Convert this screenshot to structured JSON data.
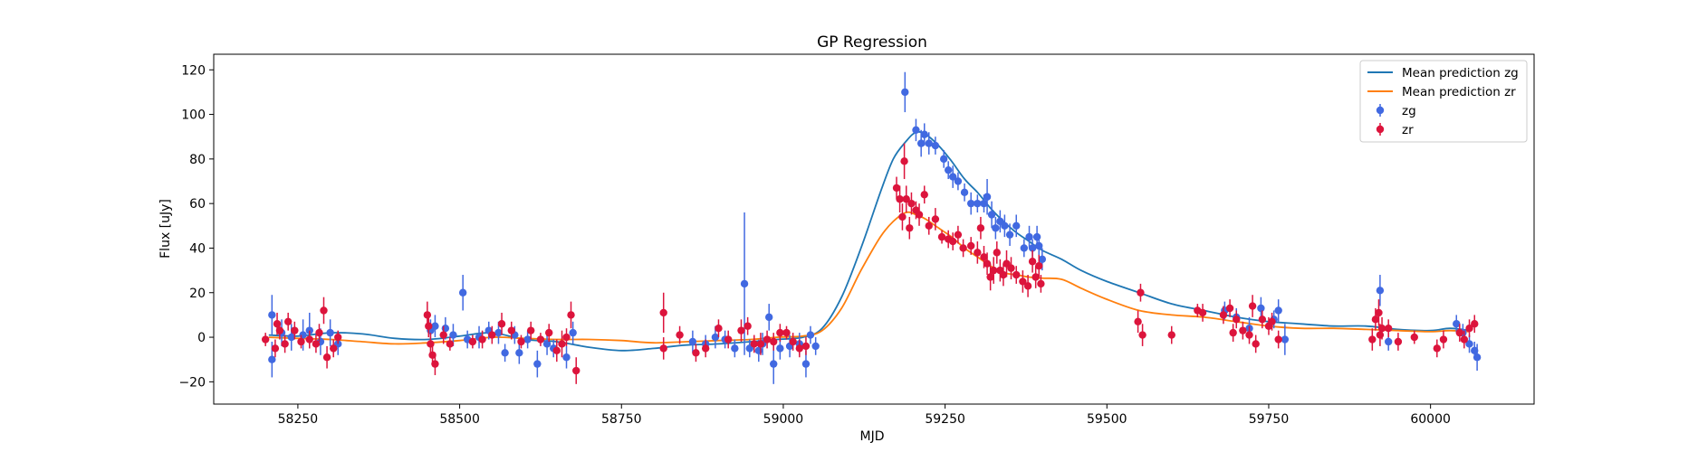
{
  "chart_data": {
    "type": "scatter",
    "title": "GP Regression",
    "xlabel": "MJD",
    "ylabel": "Flux [uJy]",
    "xlim": [
      58120,
      60160
    ],
    "ylim": [
      -30,
      127
    ],
    "xticks": [
      58250,
      58500,
      58750,
      59000,
      59250,
      59500,
      59750,
      60000
    ],
    "yticks": [
      -20,
      0,
      20,
      40,
      60,
      80,
      100,
      120
    ],
    "grid": false,
    "legend_position": "top-right",
    "legend_order": [
      "pred_zg",
      "pred_zr",
      "obs_zg",
      "obs_zr"
    ],
    "series": [
      {
        "key": "pred_zg",
        "name": "Mean prediction zg",
        "kind": "line",
        "color": "#1f77b4",
        "x": [
          58205,
          58250,
          58300,
          58350,
          58400,
          58450,
          58500,
          58550,
          58600,
          58650,
          58700,
          58750,
          58800,
          58850,
          58900,
          58950,
          58990,
          59030,
          59060,
          59090,
          59120,
          59150,
          59170,
          59190,
          59205,
          59220,
          59240,
          59260,
          59280,
          59300,
          59320,
          59340,
          59360,
          59380,
          59400,
          59430,
          59460,
          59500,
          59550,
          59600,
          59650,
          59700,
          59750,
          59800,
          59850,
          59900,
          59950,
          60000,
          60030,
          60060
        ],
        "values": [
          1,
          0.5,
          2,
          1.5,
          -0.5,
          -1,
          0.5,
          2,
          -1,
          -2,
          -4.5,
          -6,
          -5,
          -3.5,
          -3,
          -2,
          -1,
          0,
          4,
          18,
          40,
          65,
          80,
          88,
          92,
          91,
          86,
          79,
          71,
          65,
          58,
          52,
          47,
          43,
          39,
          35,
          30,
          25,
          20,
          15,
          12,
          9,
          7,
          6,
          5,
          5,
          3.5,
          3,
          4,
          3
        ]
      },
      {
        "key": "pred_zr",
        "name": "Mean prediction zr",
        "kind": "line",
        "color": "#ff7f0e",
        "x": [
          58205,
          58250,
          58300,
          58350,
          58400,
          58450,
          58500,
          58550,
          58600,
          58650,
          58700,
          58750,
          58800,
          58850,
          58900,
          58950,
          58990,
          59030,
          59060,
          59090,
          59120,
          59150,
          59170,
          59190,
          59205,
          59220,
          59240,
          59260,
          59280,
          59300,
          59320,
          59340,
          59360,
          59380,
          59400,
          59430,
          59460,
          59500,
          59550,
          59600,
          59650,
          59700,
          59750,
          59800,
          59850,
          59900,
          59950,
          60000,
          60030,
          60060
        ],
        "values": [
          0,
          -0.5,
          -1,
          -2,
          -3,
          -2.5,
          -1.5,
          0,
          -0.5,
          -1,
          -1,
          -1.5,
          -2.5,
          -2,
          -1.5,
          -1,
          0,
          0.5,
          3,
          13,
          30,
          45,
          52,
          56,
          55,
          53,
          49,
          45,
          40,
          36,
          32,
          29,
          28,
          27,
          26.5,
          26,
          22,
          17,
          12,
          10,
          9,
          7,
          5,
          4,
          4,
          3.5,
          3,
          2.5,
          3,
          2.5
        ]
      },
      {
        "key": "obs_zg",
        "name": "zg",
        "kind": "errorbar",
        "color": "#4169e1",
        "points": [
          [
            58210,
            10,
            9
          ],
          [
            58210,
            -10,
            8
          ],
          [
            58225,
            2,
            6
          ],
          [
            58240,
            0,
            6
          ],
          [
            58258,
            1,
            7
          ],
          [
            58268,
            3,
            8
          ],
          [
            58285,
            -2,
            6
          ],
          [
            58300,
            2,
            6
          ],
          [
            58312,
            -3,
            5
          ],
          [
            58455,
            3,
            5
          ],
          [
            58462,
            5,
            5
          ],
          [
            58478,
            4,
            5
          ],
          [
            58490,
            1,
            5
          ],
          [
            58505,
            20,
            8
          ],
          [
            58512,
            -1,
            4
          ],
          [
            58530,
            0,
            5
          ],
          [
            58545,
            3,
            4
          ],
          [
            58560,
            2,
            5
          ],
          [
            58570,
            -7,
            4
          ],
          [
            58585,
            1,
            4
          ],
          [
            58592,
            -7,
            5
          ],
          [
            58605,
            -1,
            4
          ],
          [
            58620,
            -12,
            6
          ],
          [
            58635,
            -3,
            5
          ],
          [
            58645,
            -5,
            4
          ],
          [
            58665,
            -9,
            5
          ],
          [
            58675,
            2,
            5
          ],
          [
            58860,
            -2,
            5
          ],
          [
            58880,
            -3,
            4
          ],
          [
            58895,
            0,
            5
          ],
          [
            58910,
            -1,
            4
          ],
          [
            58925,
            -5,
            4
          ],
          [
            58940,
            24,
            32
          ],
          [
            58948,
            -5,
            4
          ],
          [
            58962,
            -6,
            5
          ],
          [
            58968,
            -3,
            5
          ],
          [
            58978,
            9,
            6
          ],
          [
            58985,
            -12,
            9
          ],
          [
            58995,
            -5,
            5
          ],
          [
            59010,
            -4,
            5
          ],
          [
            59025,
            -3,
            5
          ],
          [
            59035,
            -12,
            6
          ],
          [
            59042,
            1,
            4
          ],
          [
            59050,
            -4,
            4
          ],
          [
            59188,
            110,
            9
          ],
          [
            59205,
            93,
            5
          ],
          [
            59213,
            87,
            6
          ],
          [
            59218,
            91,
            5
          ],
          [
            59225,
            87,
            5
          ],
          [
            59235,
            86,
            4
          ],
          [
            59248,
            80,
            4
          ],
          [
            59255,
            75,
            4
          ],
          [
            59262,
            72,
            5
          ],
          [
            59270,
            70,
            4
          ],
          [
            59280,
            65,
            4
          ],
          [
            59290,
            60,
            5
          ],
          [
            59300,
            60,
            4
          ],
          [
            59310,
            60,
            4
          ],
          [
            59315,
            63,
            8
          ],
          [
            59322,
            55,
            6
          ],
          [
            59328,
            49,
            5
          ],
          [
            59335,
            52,
            5
          ],
          [
            59342,
            50,
            5
          ],
          [
            59350,
            46,
            5
          ],
          [
            59360,
            50,
            5
          ],
          [
            59372,
            40,
            4
          ],
          [
            59380,
            45,
            5
          ],
          [
            59385,
            40,
            4
          ],
          [
            59392,
            45,
            5
          ],
          [
            59395,
            41,
            5
          ],
          [
            59400,
            35,
            5
          ],
          [
            59682,
            12,
            4
          ],
          [
            59700,
            9,
            4
          ],
          [
            59720,
            4,
            5
          ],
          [
            59738,
            13,
            5
          ],
          [
            59758,
            8,
            4
          ],
          [
            59765,
            12,
            5
          ],
          [
            59775,
            -1,
            7
          ],
          [
            59922,
            21,
            7
          ],
          [
            59935,
            -2,
            4
          ],
          [
            60040,
            6,
            4
          ],
          [
            60050,
            2,
            4
          ],
          [
            60060,
            -3,
            4
          ],
          [
            60068,
            -6,
            4
          ],
          [
            60072,
            -9,
            6
          ]
        ]
      },
      {
        "key": "obs_zr",
        "name": "zr",
        "kind": "errorbar",
        "color": "#dc143c",
        "points": [
          [
            58200,
            -1,
            3
          ],
          [
            58215,
            -5,
            4
          ],
          [
            58218,
            6,
            5
          ],
          [
            58222,
            3,
            4
          ],
          [
            58230,
            -3,
            4
          ],
          [
            58235,
            7,
            4
          ],
          [
            58245,
            3,
            4
          ],
          [
            58255,
            -2,
            3
          ],
          [
            58268,
            -1,
            4
          ],
          [
            58278,
            -3,
            4
          ],
          [
            58283,
            2,
            4
          ],
          [
            58290,
            12,
            6
          ],
          [
            58295,
            -9,
            5
          ],
          [
            58305,
            -5,
            4
          ],
          [
            58312,
            0,
            3
          ],
          [
            58450,
            10,
            6
          ],
          [
            58452,
            5,
            5
          ],
          [
            58455,
            -3,
            5
          ],
          [
            58458,
            -8,
            4
          ],
          [
            58462,
            -12,
            5
          ],
          [
            58475,
            1,
            4
          ],
          [
            58485,
            -3,
            3
          ],
          [
            58520,
            -2,
            3
          ],
          [
            58535,
            -1,
            4
          ],
          [
            58550,
            1,
            4
          ],
          [
            58565,
            6,
            5
          ],
          [
            58580,
            3,
            4
          ],
          [
            58595,
            -2,
            3
          ],
          [
            58610,
            3,
            4
          ],
          [
            58625,
            -1,
            3
          ],
          [
            58638,
            2,
            4
          ],
          [
            58650,
            -6,
            5
          ],
          [
            58658,
            -3,
            6
          ],
          [
            58665,
            0,
            4
          ],
          [
            58672,
            10,
            6
          ],
          [
            58680,
            -15,
            6
          ],
          [
            58815,
            11,
            9
          ],
          [
            58815,
            -5,
            5
          ],
          [
            58840,
            1,
            4
          ],
          [
            58865,
            -7,
            4
          ],
          [
            58880,
            -5,
            4
          ],
          [
            58900,
            4,
            4
          ],
          [
            58915,
            -1,
            4
          ],
          [
            58935,
            3,
            5
          ],
          [
            58945,
            5,
            4
          ],
          [
            58955,
            -3,
            4
          ],
          [
            58965,
            -3,
            5
          ],
          [
            58975,
            -1,
            4
          ],
          [
            58985,
            -2,
            4
          ],
          [
            58995,
            2,
            4
          ],
          [
            59005,
            2,
            3
          ],
          [
            59015,
            -2,
            4
          ],
          [
            59025,
            -5,
            4
          ],
          [
            59035,
            -4,
            4
          ],
          [
            59175,
            67,
            5
          ],
          [
            59180,
            62,
            6
          ],
          [
            59184,
            54,
            6
          ],
          [
            59187,
            79,
            8
          ],
          [
            59190,
            62,
            6
          ],
          [
            59195,
            49,
            5
          ],
          [
            59198,
            60,
            5
          ],
          [
            59205,
            57,
            4
          ],
          [
            59210,
            55,
            5
          ],
          [
            59218,
            64,
            4
          ],
          [
            59225,
            50,
            4
          ],
          [
            59235,
            53,
            5
          ],
          [
            59245,
            45,
            3
          ],
          [
            59255,
            44,
            4
          ],
          [
            59262,
            43,
            4
          ],
          [
            59270,
            46,
            4
          ],
          [
            59278,
            40,
            4
          ],
          [
            59290,
            41,
            4
          ],
          [
            59300,
            38,
            5
          ],
          [
            59305,
            49,
            5
          ],
          [
            59310,
            36,
            5
          ],
          [
            59315,
            33,
            5
          ],
          [
            59320,
            27,
            6
          ],
          [
            59325,
            30,
            6
          ],
          [
            59330,
            38,
            5
          ],
          [
            59335,
            30,
            5
          ],
          [
            59340,
            28,
            5
          ],
          [
            59345,
            33,
            6
          ],
          [
            59352,
            31,
            5
          ],
          [
            59360,
            28,
            4
          ],
          [
            59370,
            25,
            5
          ],
          [
            59378,
            23,
            5
          ],
          [
            59385,
            34,
            5
          ],
          [
            59390,
            27,
            5
          ],
          [
            59395,
            32,
            5
          ],
          [
            59398,
            24,
            4
          ],
          [
            59548,
            7,
            5
          ],
          [
            59552,
            20,
            4
          ],
          [
            59555,
            1,
            5
          ],
          [
            59600,
            1,
            4
          ],
          [
            59640,
            12,
            3
          ],
          [
            59648,
            11,
            4
          ],
          [
            59680,
            10,
            4
          ],
          [
            59690,
            13,
            4
          ],
          [
            59695,
            2,
            4
          ],
          [
            59700,
            8,
            4
          ],
          [
            59710,
            3,
            4
          ],
          [
            59720,
            1,
            4
          ],
          [
            59725,
            14,
            5
          ],
          [
            59730,
            -3,
            4
          ],
          [
            59740,
            8,
            4
          ],
          [
            59750,
            5,
            4
          ],
          [
            59755,
            7,
            4
          ],
          [
            59765,
            -1,
            4
          ],
          [
            59910,
            -1,
            5
          ],
          [
            59915,
            8,
            5
          ],
          [
            59920,
            11,
            6
          ],
          [
            59922,
            1,
            5
          ],
          [
            59925,
            4,
            5
          ],
          [
            59935,
            4,
            4
          ],
          [
            59950,
            -2,
            4
          ],
          [
            59975,
            0,
            3
          ],
          [
            60010,
            -5,
            4
          ],
          [
            60020,
            -1,
            4
          ],
          [
            60045,
            2,
            4
          ],
          [
            60052,
            -1,
            4
          ],
          [
            60060,
            4,
            4
          ],
          [
            60068,
            6,
            4
          ]
        ]
      }
    ]
  }
}
